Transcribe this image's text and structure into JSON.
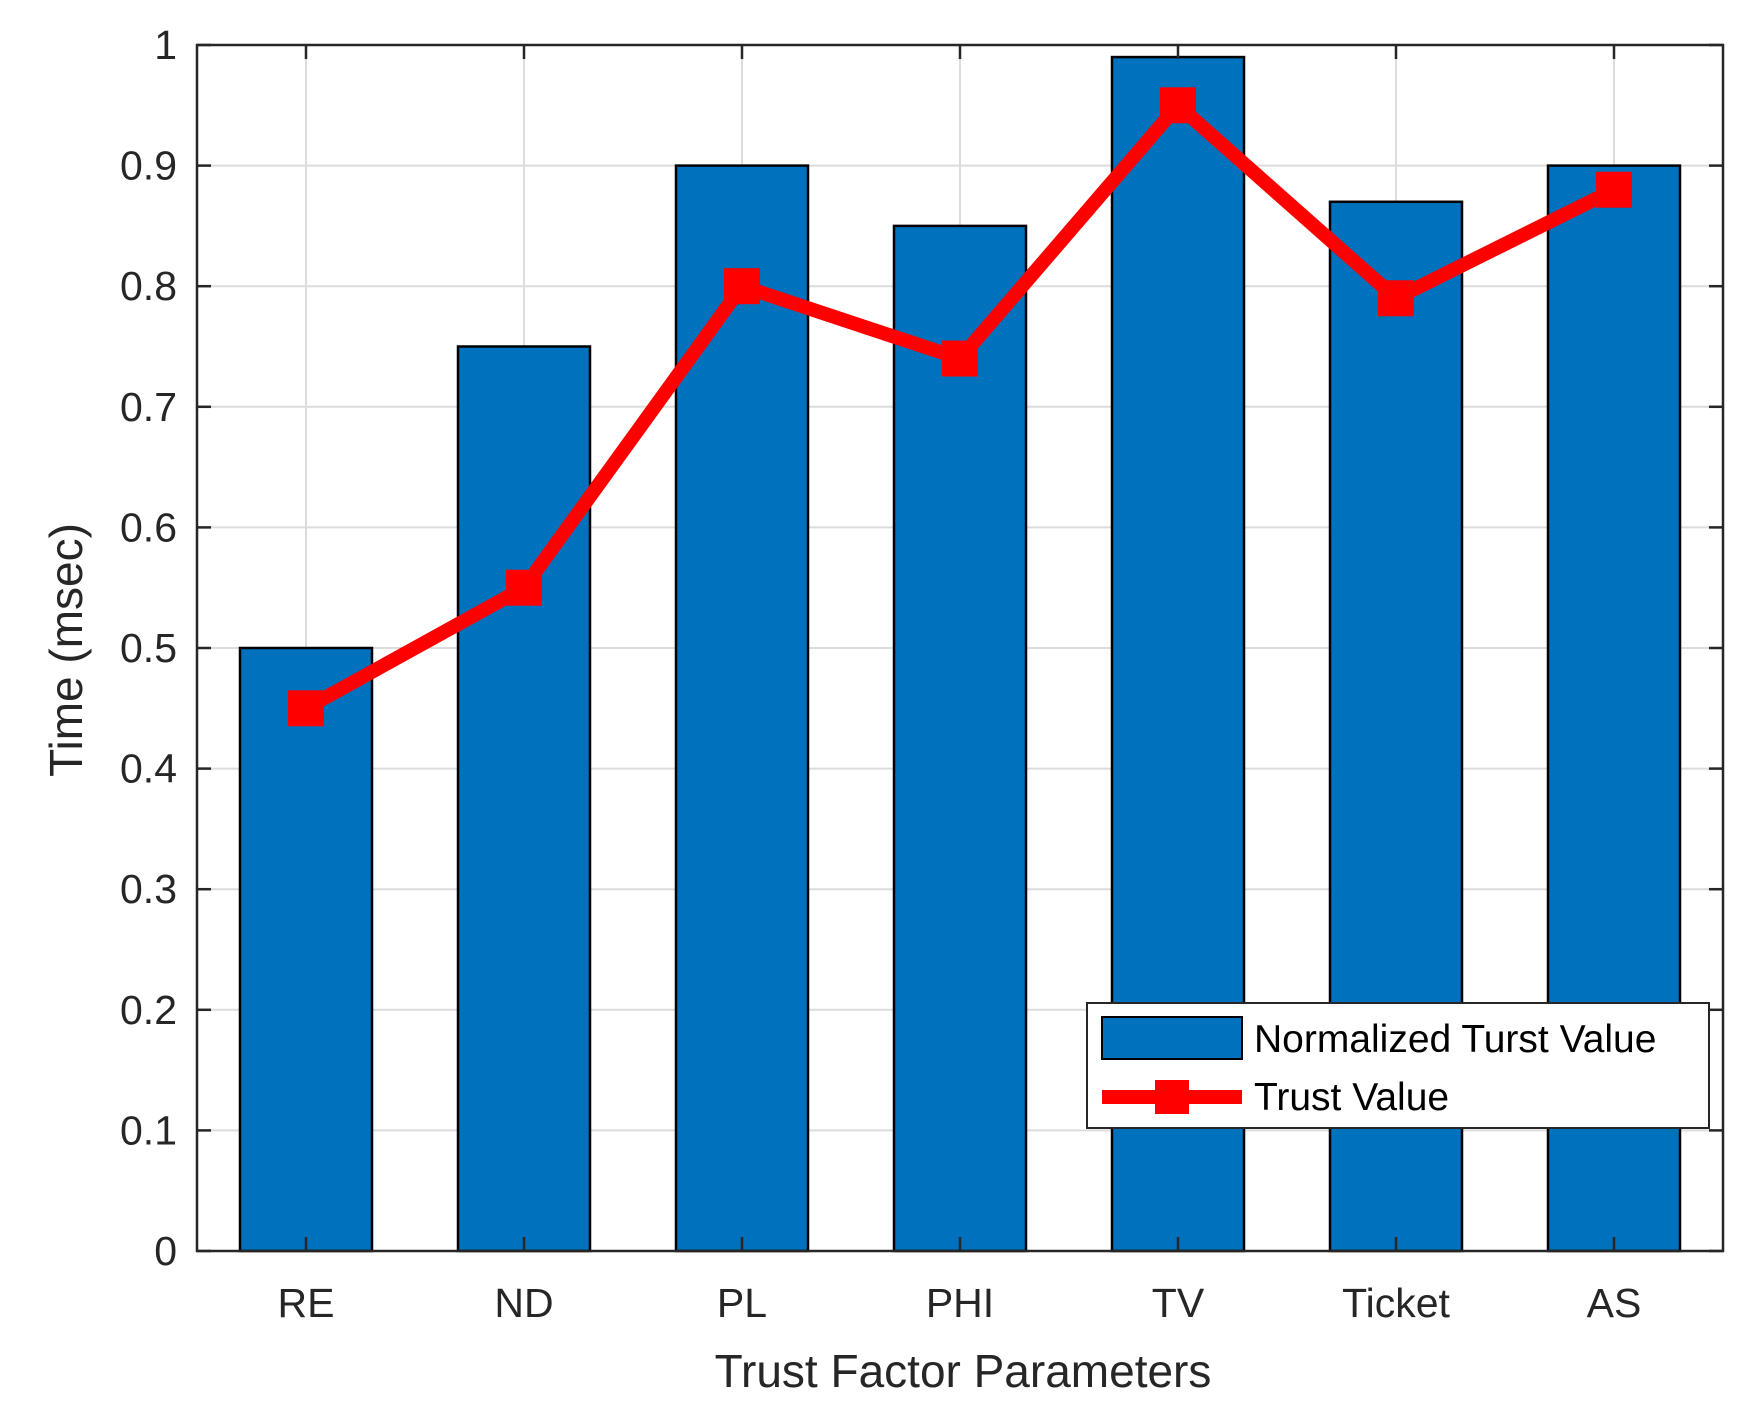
{
  "chart_data": {
    "type": "bar",
    "title": "",
    "xlabel": "Trust Factor Parameters",
    "ylabel": "Time (msec)",
    "ylim": [
      0,
      1
    ],
    "yticks": [
      "0",
      "0.1",
      "0.2",
      "0.3",
      "0.4",
      "0.5",
      "0.6",
      "0.7",
      "0.8",
      "0.9",
      "1"
    ],
    "ytick_values": [
      0,
      0.1,
      0.2,
      0.3,
      0.4,
      0.5,
      0.6,
      0.7,
      0.8,
      0.9,
      1.0
    ],
    "categories": [
      "RE",
      "ND",
      "PL",
      "PHI",
      "TV",
      "Ticket",
      "AS"
    ],
    "grid": true,
    "legend_position": "bottom-right",
    "series": [
      {
        "name": "Normalized Turst Value",
        "kind": "bar",
        "color": "#0072BD",
        "values": [
          0.5,
          0.75,
          0.9,
          0.85,
          0.99,
          0.87,
          0.9
        ]
      },
      {
        "name": "Trust Value",
        "kind": "line",
        "marker": "square",
        "color": "#FF0000",
        "values": [
          0.45,
          0.55,
          0.8,
          0.74,
          0.95,
          0.79,
          0.88
        ]
      }
    ]
  }
}
